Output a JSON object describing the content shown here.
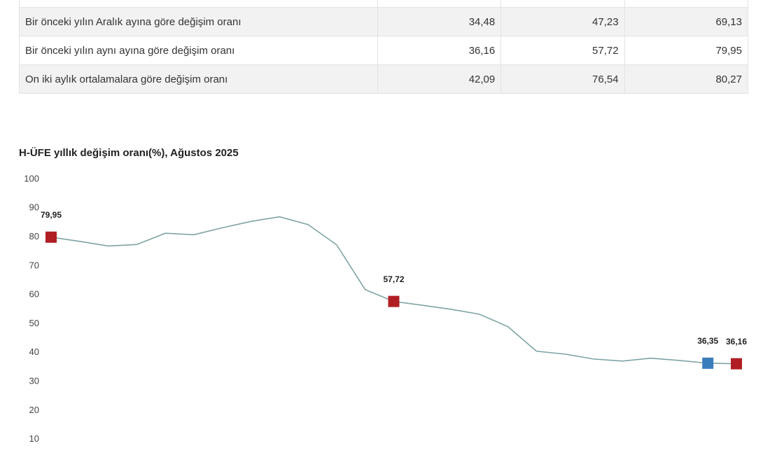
{
  "table": {
    "rows": [
      [
        "",
        "",
        "",
        ""
      ],
      [
        "Bir önceki yılın Aralık ayına göre değişim oranı",
        "34,48",
        "47,23",
        "69,13"
      ],
      [
        "Bir önceki yılın aynı ayına göre değişim oranı",
        "36,16",
        "57,72",
        "79,95"
      ],
      [
        "On iki aylık ortalamalara göre değişim oranı",
        "42,09",
        "76,54",
        "80,27"
      ]
    ]
  },
  "chart_data": {
    "type": "line",
    "title": "H-ÜFE yıllık değişim oranı(%), Ağustos 2025",
    "categories": [
      null,
      null,
      null,
      null,
      null,
      null,
      null,
      null,
      null,
      null,
      null,
      null,
      null,
      null,
      null,
      null,
      null,
      null,
      null,
      null,
      null,
      null,
      null,
      null,
      null
    ],
    "values": [
      79.95,
      78.5,
      76.9,
      77.4,
      81.3,
      80.8,
      83.2,
      85.4,
      87.0,
      84.3,
      77.3,
      61.8,
      57.72,
      56.4,
      55.0,
      53.3,
      49.0,
      40.5,
      39.5,
      37.8,
      37.1,
      38.1,
      37.3,
      36.35,
      36.16
    ],
    "value_labels": [
      "79,95",
      null,
      null,
      null,
      null,
      null,
      null,
      null,
      null,
      null,
      null,
      null,
      "57,72",
      null,
      null,
      null,
      null,
      null,
      null,
      null,
      null,
      null,
      null,
      "36,35",
      "36,16"
    ],
    "marker_colors": [
      "#b01e24",
      null,
      null,
      null,
      null,
      null,
      null,
      null,
      null,
      null,
      null,
      null,
      "#b01e24",
      null,
      null,
      null,
      null,
      null,
      null,
      null,
      null,
      null,
      null,
      "#3a7dbc",
      "#b01e24"
    ],
    "color": "#7fa3a3",
    "ylim": [
      0,
      100
    ],
    "yticks": [
      10,
      20,
      30,
      40,
      50,
      60,
      70,
      80,
      90,
      100
    ]
  }
}
